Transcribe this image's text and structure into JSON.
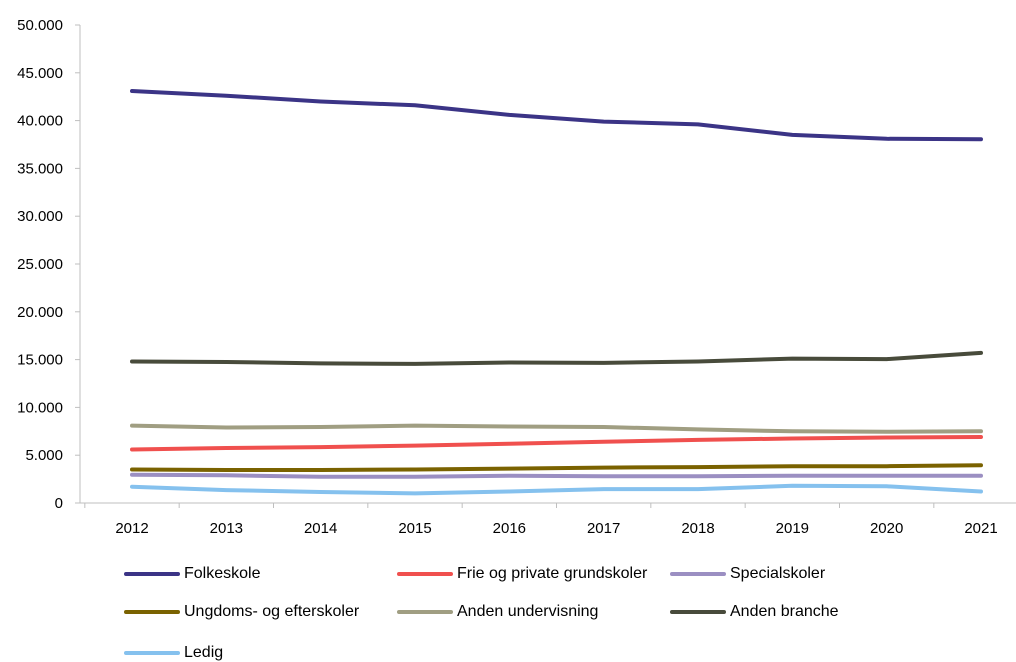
{
  "chart_data": {
    "type": "line",
    "x": [
      "2012",
      "2013",
      "2014",
      "2015",
      "2016",
      "2017",
      "2018",
      "2019",
      "2020",
      "2021"
    ],
    "ylim": [
      0,
      50000
    ],
    "yticks": [
      0,
      5000,
      10000,
      15000,
      20000,
      25000,
      30000,
      35000,
      40000,
      45000,
      50000
    ],
    "ytick_labels": [
      "0",
      "5.000",
      "10.000",
      "15.000",
      "20.000",
      "25.000",
      "30.000",
      "35.000",
      "40.000",
      "45.000",
      "50.000"
    ],
    "grid": false,
    "legend_position": "bottom",
    "series": [
      {
        "name": "Folkeskole",
        "color": "#3b3486",
        "values": [
          43100,
          42600,
          42000,
          41600,
          40600,
          39900,
          39600,
          38500,
          38100,
          38050
        ]
      },
      {
        "name": "Frie og private grundskoler",
        "color": "#f0504e",
        "values": [
          5600,
          5750,
          5850,
          6000,
          6200,
          6400,
          6600,
          6750,
          6850,
          6900
        ]
      },
      {
        "name": "Specialskoler",
        "color": "#9b8fc2",
        "values": [
          2950,
          2900,
          2750,
          2750,
          2850,
          2800,
          2800,
          2850,
          2850,
          2850
        ]
      },
      {
        "name": "Ungdoms- og efterskoler",
        "color": "#7a6200",
        "values": [
          3500,
          3450,
          3450,
          3500,
          3600,
          3700,
          3750,
          3850,
          3850,
          3950
        ]
      },
      {
        "name": "Anden undervisning",
        "color": "#a09e82",
        "values": [
          8100,
          7900,
          7950,
          8100,
          8000,
          7950,
          7700,
          7500,
          7450,
          7500
        ]
      },
      {
        "name": "Anden branche",
        "color": "#484b3b",
        "values": [
          14800,
          14750,
          14600,
          14550,
          14700,
          14650,
          14800,
          15100,
          15050,
          15700
        ]
      },
      {
        "name": "Ledig",
        "color": "#85c1ee",
        "values": [
          1700,
          1350,
          1150,
          1000,
          1200,
          1450,
          1450,
          1800,
          1750,
          1200
        ]
      }
    ]
  }
}
